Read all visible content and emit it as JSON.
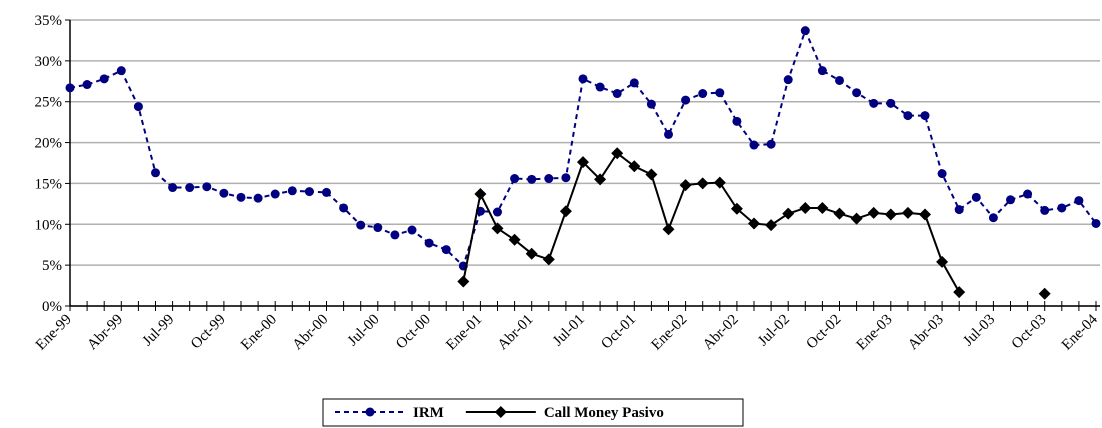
{
  "chart_data": {
    "type": "line",
    "categories": [
      "Ene-99",
      null,
      null,
      "Abr-99",
      null,
      null,
      "Jul-99",
      null,
      null,
      "Oct-99",
      null,
      null,
      "Ene-00",
      null,
      null,
      "Abr-00",
      null,
      null,
      "Jul-00",
      null,
      null,
      "Oct-00",
      null,
      null,
      "Ene-01",
      null,
      null,
      "Abr-01",
      null,
      null,
      "Jul-01",
      null,
      null,
      "Oct-01",
      null,
      null,
      "Ene-02",
      null,
      null,
      "Abr-02",
      null,
      null,
      "Jul-02",
      null,
      null,
      "Oct-02",
      null,
      null,
      "Ene-03",
      null,
      null,
      "Abr-03",
      null,
      null,
      "Jul-03",
      null,
      null,
      "Oct-03",
      null,
      null,
      "Ene-04"
    ],
    "series": [
      {
        "name": "IRM",
        "color": "#000080",
        "dash": true,
        "marker": "circle",
        "values": [
          26.7,
          27.1,
          27.8,
          28.8,
          24.4,
          16.3,
          14.5,
          14.5,
          14.6,
          13.8,
          13.3,
          13.2,
          13.7,
          14.1,
          14.0,
          13.9,
          12.0,
          9.9,
          9.6,
          8.7,
          9.3,
          7.7,
          6.9,
          4.9,
          11.6,
          11.5,
          15.6,
          15.5,
          15.6,
          15.7,
          27.8,
          26.8,
          26.0,
          27.3,
          24.7,
          21.0,
          25.2,
          26.0,
          26.1,
          22.6,
          19.7,
          19.8,
          27.7,
          33.7,
          28.8,
          27.6,
          26.1,
          24.8,
          24.8,
          23.3,
          23.3,
          16.2,
          11.8,
          13.3,
          10.8,
          13.0,
          13.7,
          11.7,
          12.0,
          12.9,
          10.1
        ]
      },
      {
        "name": "Call Money Pasivo",
        "color": "#000000",
        "dash": false,
        "marker": "diamond",
        "values": [
          null,
          null,
          null,
          null,
          null,
          null,
          null,
          null,
          null,
          null,
          null,
          null,
          null,
          null,
          null,
          null,
          null,
          null,
          null,
          null,
          null,
          null,
          null,
          3.0,
          13.7,
          9.5,
          8.1,
          6.4,
          5.7,
          11.6,
          17.6,
          15.5,
          18.7,
          17.1,
          16.1,
          9.4,
          14.8,
          15.0,
          15.1,
          11.9,
          10.1,
          9.9,
          11.3,
          12.0,
          12.0,
          11.3,
          10.7,
          11.4,
          11.2,
          11.4,
          11.2,
          5.4,
          1.7,
          null,
          null,
          null,
          null,
          1.5,
          null,
          null,
          null
        ]
      }
    ],
    "ylim": [
      0,
      35
    ],
    "yticks": [
      {
        "value": 0,
        "label": "0%"
      },
      {
        "value": 5,
        "label": "5%"
      },
      {
        "value": 10,
        "label": "10%"
      },
      {
        "value": 15,
        "label": "15%"
      },
      {
        "value": 20,
        "label": "20%"
      },
      {
        "value": 25,
        "label": "25%"
      },
      {
        "value": 30,
        "label": "30%"
      },
      {
        "value": 35,
        "label": "35%"
      }
    ],
    "grid": true,
    "legend": "bottom"
  }
}
